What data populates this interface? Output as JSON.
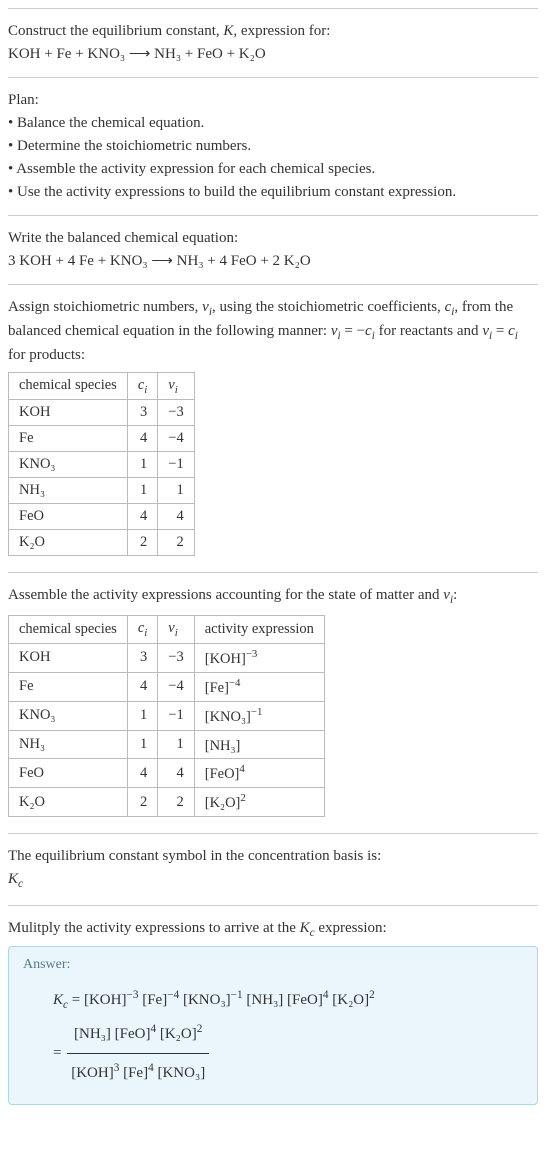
{
  "title": "Construct the equilibrium constant, K, expression for:",
  "equation_unbalanced": "KOH + Fe + KNO₃  ⟶  NH₃ + FeO + K₂O",
  "plan_label": "Plan:",
  "plan_items": [
    "Balance the chemical equation.",
    "Determine the stoichiometric numbers.",
    "Assemble the activity expression for each chemical species.",
    "Use the activity expressions to build the equilibrium constant expression."
  ],
  "balanced_intro": "Write the balanced chemical equation:",
  "equation_balanced": "3 KOH + 4 Fe + KNO₃  ⟶  NH₃ + 4 FeO + 2 K₂O",
  "stoich_intro_a": "Assign stoichiometric numbers, νᵢ, using the stoichiometric coefficients, cᵢ, from the balanced chemical equation in the following manner: νᵢ = −cᵢ for reactants and νᵢ = cᵢ for products:",
  "table1": {
    "headers": [
      "chemical species",
      "cᵢ",
      "νᵢ"
    ],
    "rows": [
      [
        "KOH",
        "3",
        "−3"
      ],
      [
        "Fe",
        "4",
        "−4"
      ],
      [
        "KNO₃",
        "1",
        "−1"
      ],
      [
        "NH₃",
        "1",
        "1"
      ],
      [
        "FeO",
        "4",
        "4"
      ],
      [
        "K₂O",
        "2",
        "2"
      ]
    ]
  },
  "activity_intro": "Assemble the activity expressions accounting for the state of matter and νᵢ:",
  "table2": {
    "headers": [
      "chemical species",
      "cᵢ",
      "νᵢ",
      "activity expression"
    ],
    "rows": [
      {
        "sp": "KOH",
        "c": "3",
        "v": "−3",
        "expr": "[KOH]",
        "pow": "−3"
      },
      {
        "sp": "Fe",
        "c": "4",
        "v": "−4",
        "expr": "[Fe]",
        "pow": "−4"
      },
      {
        "sp": "KNO₃",
        "c": "1",
        "v": "−1",
        "expr": "[KNO₃]",
        "pow": "−1"
      },
      {
        "sp": "NH₃",
        "c": "1",
        "v": "1",
        "expr": "[NH₃]",
        "pow": ""
      },
      {
        "sp": "FeO",
        "c": "4",
        "v": "4",
        "expr": "[FeO]",
        "pow": "4"
      },
      {
        "sp": "K₂O",
        "c": "2",
        "v": "2",
        "expr": "[K₂O]",
        "pow": "2"
      }
    ]
  },
  "kc_symbol_intro": "The equilibrium constant symbol in the concentration basis is:",
  "kc_symbol": "K_c",
  "multiply_intro": "Mulitply the activity expressions to arrive at the K_c expression:",
  "answer_label": "Answer:",
  "kc_line1_terms": [
    {
      "t": "[KOH]",
      "p": "−3"
    },
    {
      "t": "[Fe]",
      "p": "−4"
    },
    {
      "t": "[KNO₃]",
      "p": "−1"
    },
    {
      "t": "[NH₃]",
      "p": ""
    },
    {
      "t": "[FeO]",
      "p": "4"
    },
    {
      "t": "[K₂O]",
      "p": "2"
    }
  ],
  "kc_frac": {
    "num": [
      {
        "t": "[NH₃]",
        "p": ""
      },
      {
        "t": "[FeO]",
        "p": "4"
      },
      {
        "t": "[K₂O]",
        "p": "2"
      }
    ],
    "den": [
      {
        "t": "[KOH]",
        "p": "3"
      },
      {
        "t": "[Fe]",
        "p": "4"
      },
      {
        "t": "[KNO₃]",
        "p": ""
      }
    ]
  },
  "colors": {
    "answer_bg": "#eaf6fb",
    "answer_border": "#a8d8ea",
    "rule": "#cccccc",
    "text": "#333333"
  }
}
